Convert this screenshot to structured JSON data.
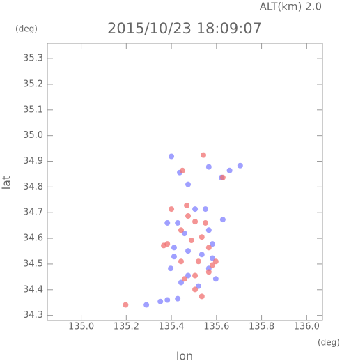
{
  "chart_data": {
    "type": "scatter",
    "title": "2015/10/23 18:09:07",
    "subtitle": "ALT(km) 2.0",
    "y_unit": "(deg)",
    "x_unit": "(deg)",
    "xlabel": "lon",
    "ylabel": "lat",
    "xlim": [
      134.85,
      136.07
    ],
    "ylim": [
      34.28,
      35.36
    ],
    "xticks": [
      {
        "value": 135,
        "label": "135.0"
      },
      135.2,
      135.4,
      135.6,
      135.8,
      {
        "value": 136,
        "label": "136.0"
      }
    ],
    "yticks": [
      34.3,
      34.4,
      34.5,
      34.6,
      34.7,
      34.8,
      34.9,
      {
        "value": 35,
        "label": "35.0"
      },
      35.1,
      35.2,
      35.3
    ],
    "grid": false,
    "series": [
      {
        "color": "#8080ff",
        "x": [
          135.4,
          135.437,
          135.474,
          135.566,
          135.622,
          135.658,
          135.705,
          135.428,
          135.382,
          135.458,
          135.566,
          135.582,
          135.412,
          135.474,
          135.535,
          135.582,
          135.397,
          135.474,
          135.566,
          135.443,
          135.52,
          135.597,
          135.382,
          135.428,
          135.289,
          135.351,
          135.412,
          135.505,
          135.551,
          135.628
        ],
        "y": [
          34.919,
          34.856,
          34.81,
          34.878,
          34.837,
          34.864,
          34.883,
          34.66,
          34.66,
          34.619,
          34.632,
          34.578,
          34.564,
          34.551,
          34.537,
          34.523,
          34.483,
          34.455,
          34.483,
          34.428,
          34.414,
          34.442,
          34.36,
          34.365,
          34.341,
          34.354,
          34.529,
          34.714,
          34.714,
          34.673
        ]
      },
      {
        "color": "#f07070",
        "x": [
          135.542,
          135.449,
          135.628,
          135.4,
          135.468,
          135.505,
          135.551,
          135.443,
          135.382,
          135.489,
          135.535,
          135.566,
          135.52,
          135.443,
          135.582,
          135.458,
          135.505,
          135.566,
          135.505,
          135.535,
          135.197,
          135.366,
          135.474,
          135.597
        ],
        "y": [
          34.924,
          34.864,
          34.837,
          34.714,
          34.728,
          34.665,
          34.66,
          34.632,
          34.578,
          34.592,
          34.605,
          34.564,
          34.51,
          34.51,
          34.496,
          34.442,
          34.455,
          34.469,
          34.401,
          34.374,
          34.341,
          34.572,
          34.687,
          34.51
        ]
      }
    ]
  }
}
